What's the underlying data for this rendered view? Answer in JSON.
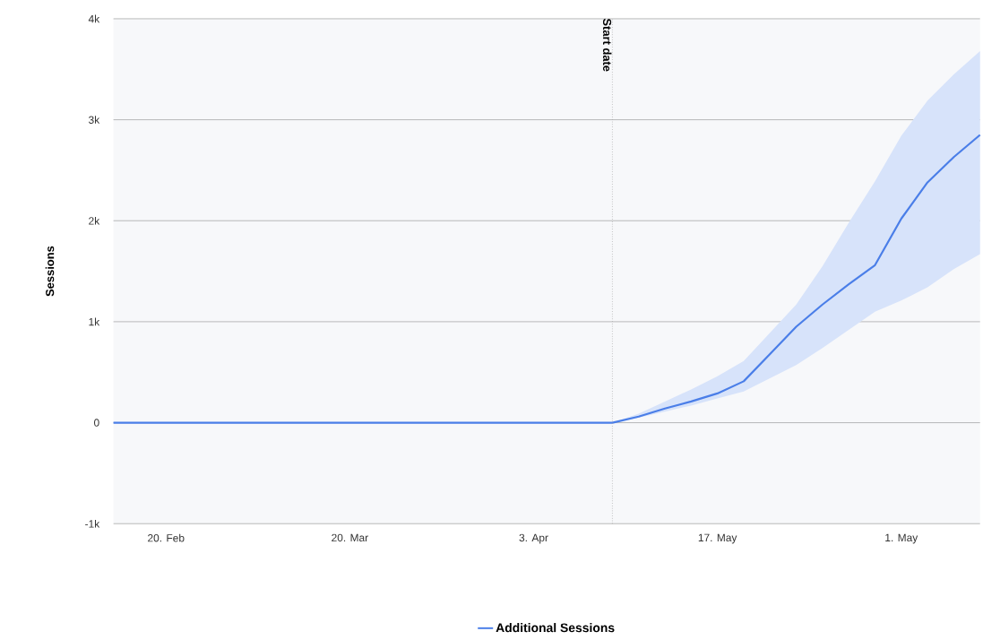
{
  "chart_data": {
    "type": "line",
    "ylabel": "Sessions",
    "categories": [
      null,
      null,
      "20. Feb",
      null,
      null,
      null,
      null,
      null,
      null,
      "20. Mar",
      null,
      null,
      null,
      null,
      null,
      null,
      "3. Apr",
      null,
      null,
      null,
      null,
      null,
      null,
      "17. May",
      null,
      null,
      null,
      null,
      null,
      null,
      "1. May",
      null,
      null,
      null
    ],
    "series": [
      {
        "name": "Additional Sessions",
        "color": "#4a7ee8",
        "values": [
          0,
          0,
          0,
          0,
          0,
          0,
          0,
          0,
          0,
          0,
          0,
          0,
          0,
          0,
          0,
          0,
          0,
          0,
          0,
          0,
          60,
          140,
          210,
          290,
          410,
          680,
          950,
          1170,
          1370,
          1560,
          2020,
          2380,
          2630,
          2850
        ],
        "lower": [
          0,
          0,
          0,
          0,
          0,
          0,
          0,
          0,
          0,
          0,
          0,
          0,
          0,
          0,
          0,
          0,
          0,
          0,
          0,
          0,
          50,
          110,
          170,
          240,
          310,
          440,
          570,
          740,
          920,
          1100,
          1210,
          1340,
          1520,
          1670
        ],
        "upper": [
          0,
          0,
          0,
          0,
          0,
          0,
          0,
          0,
          0,
          0,
          0,
          0,
          0,
          0,
          0,
          0,
          0,
          0,
          0,
          0,
          90,
          210,
          330,
          460,
          610,
          890,
          1170,
          1550,
          1980,
          2390,
          2840,
          3190,
          3450,
          3680
        ]
      }
    ],
    "ylim": [
      -1000,
      4000
    ],
    "yticks": [
      {
        "value": -1000,
        "label": "-1k"
      },
      {
        "value": 0,
        "label": "0"
      },
      {
        "value": 1000,
        "label": "1k"
      },
      {
        "value": 2000,
        "label": "2k"
      },
      {
        "value": 3000,
        "label": "3k"
      },
      {
        "value": 4000,
        "label": "4k"
      }
    ],
    "annotations": [
      "Start date"
    ],
    "grid": "y",
    "legend": "bottom",
    "marker": "none",
    "line_style": "solid"
  }
}
